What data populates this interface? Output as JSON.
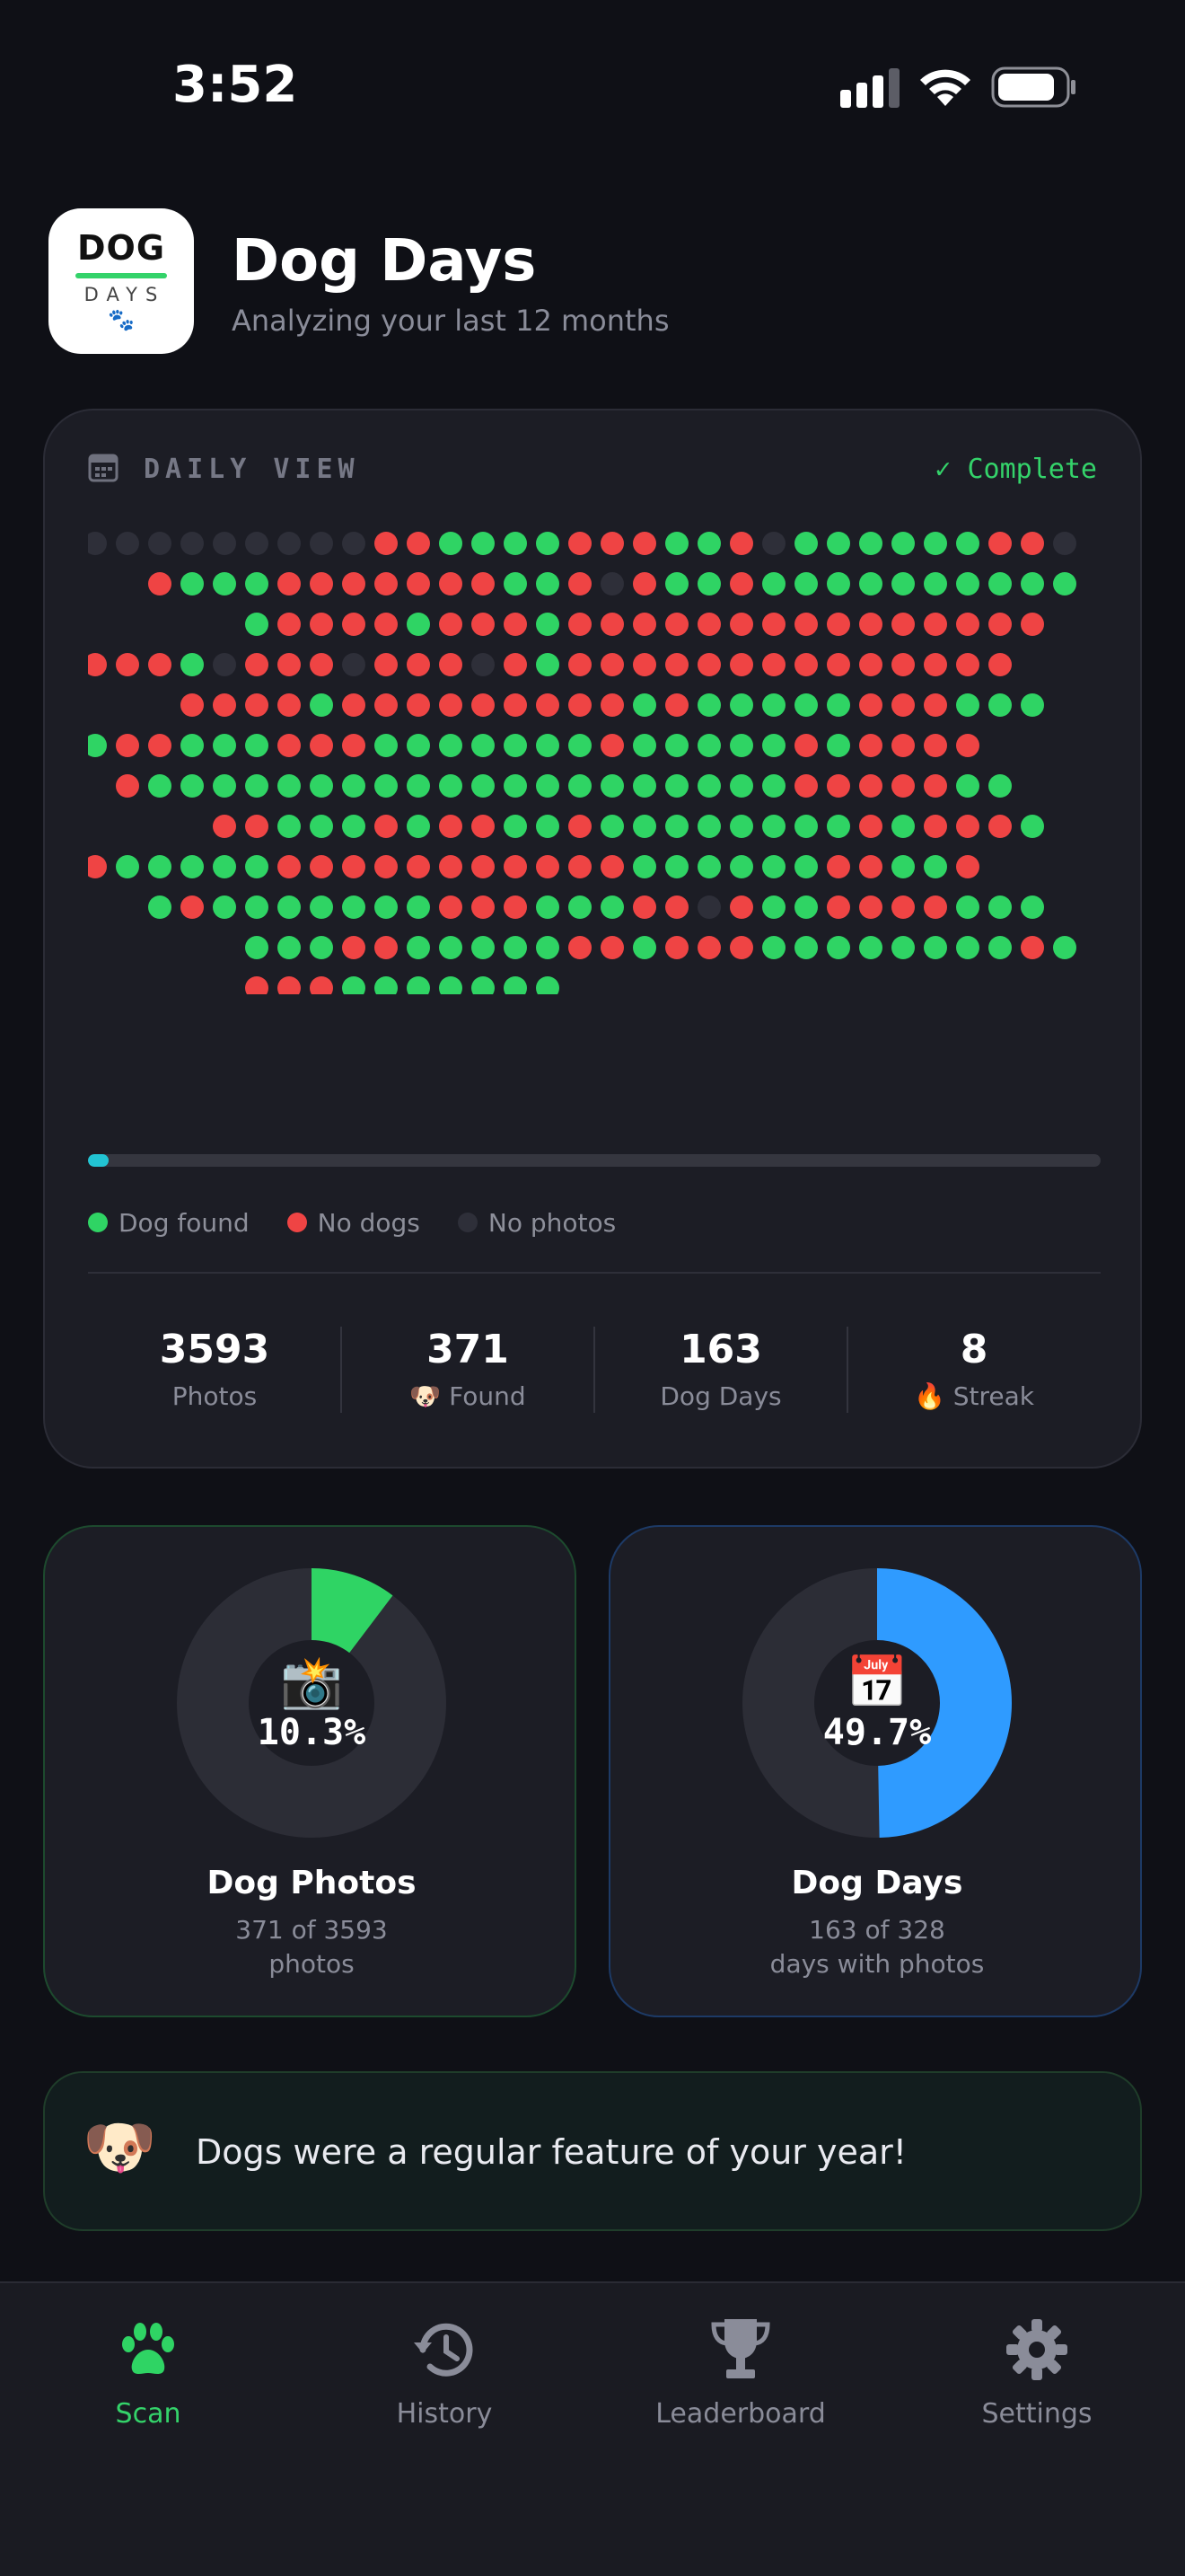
{
  "status_bar": {
    "time": "3:52"
  },
  "header": {
    "icon_title": "DOG",
    "icon_subtitle": "DAYS",
    "icon_paws": "🐾",
    "title": "Dog Days",
    "subtitle": "Analyzing your last 12 months"
  },
  "daily_view": {
    "label": "DAILY VIEW",
    "status": "✓ Complete",
    "progress": 0.02,
    "colors": {
      "dog": "#2fd464",
      "nodog": "#ef4444",
      "nophoto": "#2e2f39"
    },
    "rows": [
      "nnnnnnnnnrrggggrrrggrnggggggrrn",
      "  rgggrrrrrrrggrnrggrgggggggggg",
      "     grrrrgrrrgrrrrrrrrrrrrrrr",
      "rrrgnrrrnrrrnrgrrrrrrrrrrrrrr",
      "   rrrrgrrrrrrrrrgrgggggrrrggg",
      "grrgggrrrgggggggrgggggrgrrrr",
      " rggggggggggggggggggggrrrrrgg",
      "    rrgggrgrrggrggggggggrgrrrg",
      "rgggggrrrrrrrrrrrggggggrrggr",
      "  grgggggggrrrgggrrnrggrrrrggg",
      "     gggrrgggggrrgrrrggggggggrg",
      "     rrrggggggg"
    ],
    "legend": [
      {
        "label": "Dog found",
        "color": "#2fd464"
      },
      {
        "label": "No dogs",
        "color": "#ef4444"
      },
      {
        "label": "No photos",
        "color": "#2e2f39"
      }
    ],
    "stats": [
      {
        "value": "3593",
        "label": "Photos"
      },
      {
        "value": "371",
        "label": "🐶 Found"
      },
      {
        "value": "163",
        "label": "Dog Days"
      },
      {
        "value": "8",
        "label": "🔥 Streak"
      }
    ]
  },
  "dog_photos": {
    "emoji": "📸",
    "percent_label": "10.3%",
    "fraction": 0.103,
    "color": "#2fd464",
    "title": "Dog Photos",
    "detail_1": "371 of 3593",
    "detail_2": "photos"
  },
  "dog_days": {
    "emoji": "📅",
    "percent_label": "49.7%",
    "fraction": 0.497,
    "color": "#2f9bff",
    "title": "Dog Days",
    "detail_1": "163 of 328",
    "detail_2": "days with photos"
  },
  "banner": {
    "emoji": "🐶",
    "text": "Dogs were a regular feature of your year!"
  },
  "tabs": [
    {
      "label": "Scan",
      "icon": "paw-icon",
      "active": true
    },
    {
      "label": "History",
      "icon": "history-icon",
      "active": false
    },
    {
      "label": "Leaderboard",
      "icon": "trophy-icon",
      "active": false
    },
    {
      "label": "Settings",
      "icon": "gear-icon",
      "active": false
    }
  ]
}
